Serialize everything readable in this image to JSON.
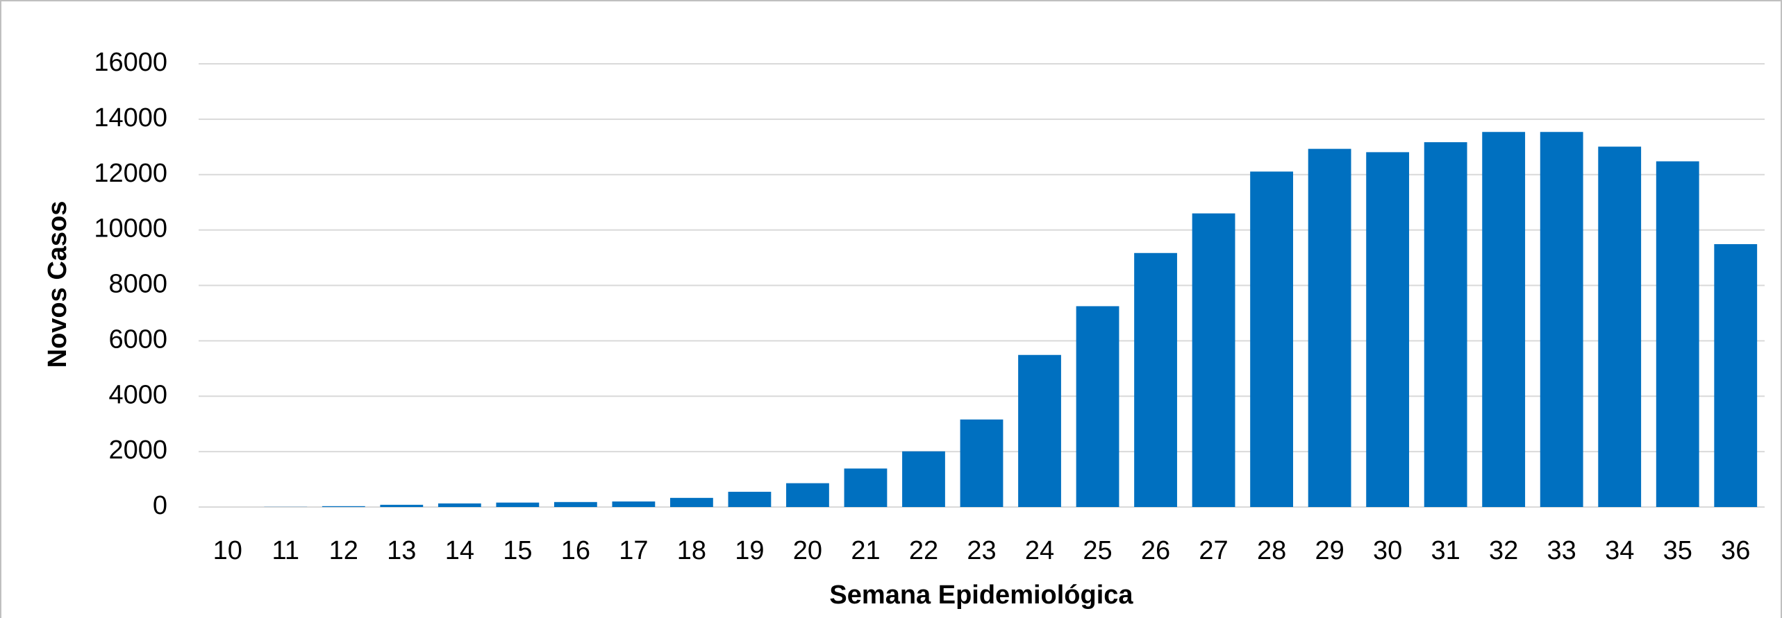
{
  "chart_data": {
    "type": "bar",
    "x_label": "Semana Epidemiológica",
    "y_label": "Novos Casos",
    "categories": [
      "10",
      "11",
      "12",
      "13",
      "14",
      "15",
      "16",
      "17",
      "18",
      "19",
      "20",
      "21",
      "22",
      "23",
      "24",
      "25",
      "26",
      "27",
      "28",
      "29",
      "30",
      "31",
      "32",
      "33",
      "34",
      "35",
      "36"
    ],
    "values": [
      0,
      5,
      30,
      80,
      130,
      160,
      180,
      200,
      330,
      550,
      860,
      1390,
      2010,
      3160,
      5490,
      7250,
      9170,
      10600,
      12110,
      12930,
      12810,
      13170,
      13540,
      13540,
      13010,
      12480,
      9490
    ],
    "color": "#0070c0",
    "ylim": [
      0,
      16000
    ],
    "yticks": [
      0,
      2000,
      4000,
      6000,
      8000,
      10000,
      12000,
      14000,
      16000
    ],
    "grid": true
  }
}
